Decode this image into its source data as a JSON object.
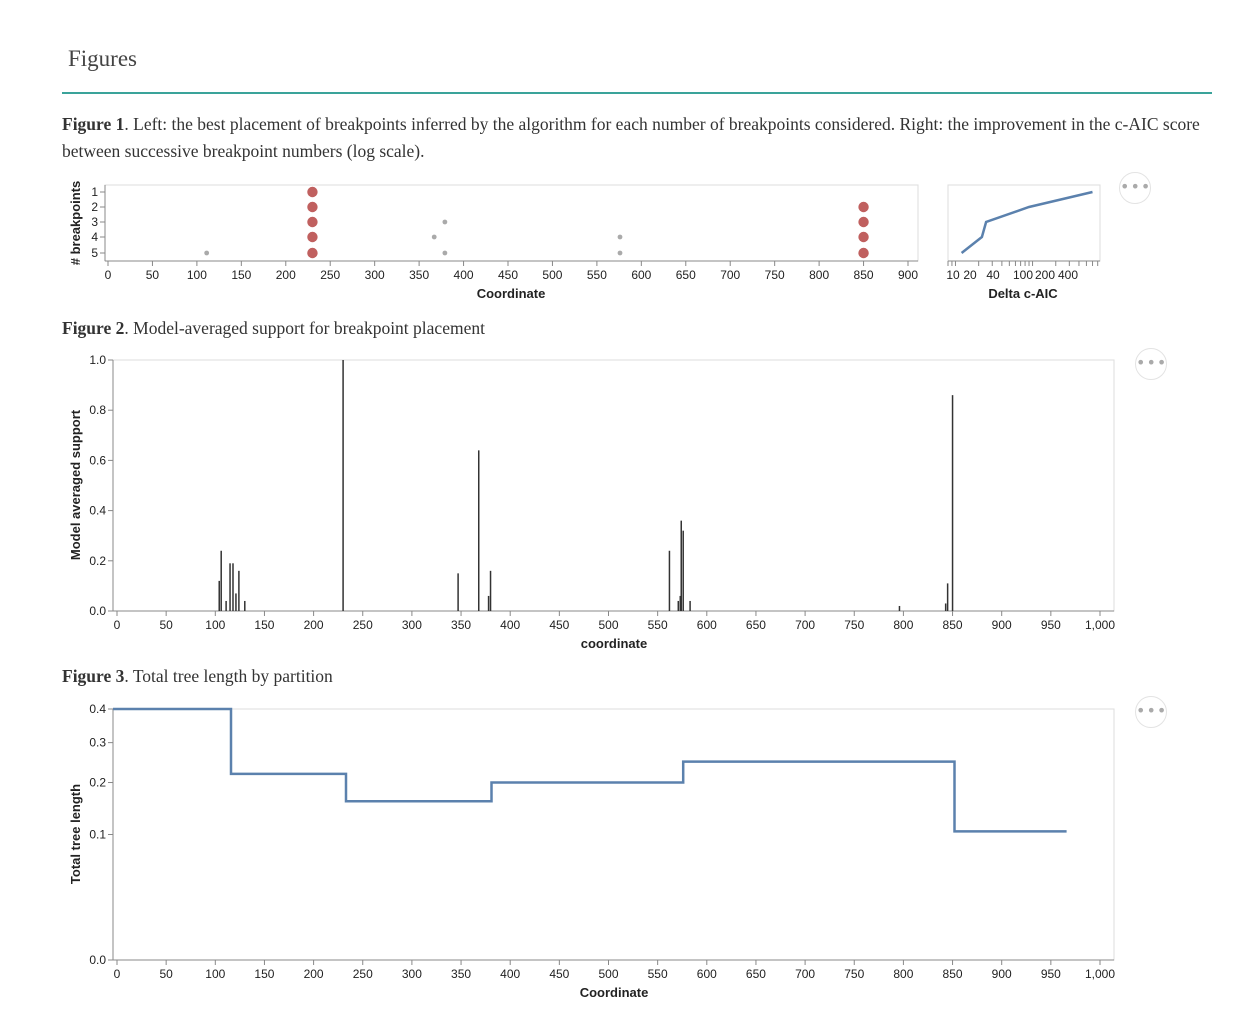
{
  "page": {
    "title": "Figures",
    "menu_glyph": "•••"
  },
  "captions": [
    {
      "label": "Figure 1",
      "text": ". Left: the best placement of breakpoints inferred by the algorithm for each number of breakpoints considered. Right: the improvement in the c-AIC score between successive breakpoint numbers (log scale)."
    },
    {
      "label": "Figure 2",
      "text": ". Model-averaged support for breakpoint placement"
    },
    {
      "label": "Figure 3",
      "text": ". Total tree length by partition"
    }
  ],
  "colors": {
    "accent_rule": "#3aa39a",
    "point_large": "#c0605f",
    "point_small": "#aaaaaa",
    "line": "#5b81ad",
    "bar": "#333333"
  },
  "chart_data": [
    {
      "id": "breakpoints",
      "type": "scatter",
      "xlabel": "Coordinate",
      "ylabel": "# breakpoints",
      "xlim": [
        0,
        900
      ],
      "xticks": [
        0,
        50,
        100,
        150,
        200,
        250,
        300,
        350,
        400,
        450,
        500,
        550,
        600,
        650,
        700,
        750,
        800,
        850,
        900
      ],
      "ycategories": [
        "1",
        "2",
        "3",
        "4",
        "5"
      ],
      "points": [
        {
          "x": 230,
          "y": "1",
          "size": "large"
        },
        {
          "x": 230,
          "y": "2",
          "size": "large"
        },
        {
          "x": 230,
          "y": "3",
          "size": "large"
        },
        {
          "x": 230,
          "y": "4",
          "size": "large"
        },
        {
          "x": 230,
          "y": "5",
          "size": "large"
        },
        {
          "x": 850,
          "y": "2",
          "size": "large"
        },
        {
          "x": 850,
          "y": "3",
          "size": "large"
        },
        {
          "x": 850,
          "y": "4",
          "size": "large"
        },
        {
          "x": 850,
          "y": "5",
          "size": "large"
        },
        {
          "x": 111,
          "y": "5",
          "size": "small"
        },
        {
          "x": 379,
          "y": "3",
          "size": "small"
        },
        {
          "x": 367,
          "y": "4",
          "size": "small"
        },
        {
          "x": 379,
          "y": "5",
          "size": "small"
        },
        {
          "x": 576,
          "y": "4",
          "size": "small"
        },
        {
          "x": 576,
          "y": "5",
          "size": "small"
        }
      ]
    },
    {
      "id": "delta-caic",
      "type": "line",
      "xlabel": "Delta c-AIC",
      "scale": "log",
      "xlim": [
        8,
        750
      ],
      "xticks": [
        10,
        20,
        40,
        100,
        200,
        400
      ],
      "ycategories": [
        "1",
        "2",
        "3",
        "4",
        "5"
      ],
      "points": [
        {
          "x": 600,
          "y": "1"
        },
        {
          "x": 90,
          "y": "2"
        },
        {
          "x": 25,
          "y": "3"
        },
        {
          "x": 22,
          "y": "4"
        },
        {
          "x": 12,
          "y": "5"
        }
      ]
    },
    {
      "id": "support",
      "type": "bar",
      "xlabel": "coordinate",
      "ylabel": "Model averaged support",
      "xlim": [
        0,
        1000
      ],
      "ylim": [
        0,
        1
      ],
      "xticks": [
        0,
        50,
        100,
        150,
        200,
        250,
        300,
        350,
        400,
        450,
        500,
        550,
        600,
        650,
        700,
        750,
        800,
        850,
        900,
        950,
        1000
      ],
      "xtick_labels": [
        "0",
        "50",
        "100",
        "150",
        "200",
        "250",
        "300",
        "350",
        "400",
        "450",
        "500",
        "550",
        "600",
        "650",
        "700",
        "750",
        "800",
        "850",
        "900",
        "950",
        "1,000"
      ],
      "yticks": [
        0,
        0.2,
        0.4,
        0.6,
        0.8,
        1.0
      ],
      "ytick_labels": [
        "0.0",
        "0.2",
        "0.4",
        "0.6",
        "0.8",
        "1.0"
      ],
      "bars": [
        {
          "x": 104,
          "y": 0.12
        },
        {
          "x": 106,
          "y": 0.24
        },
        {
          "x": 111,
          "y": 0.04
        },
        {
          "x": 115,
          "y": 0.19
        },
        {
          "x": 118,
          "y": 0.19
        },
        {
          "x": 121,
          "y": 0.07
        },
        {
          "x": 124,
          "y": 0.16
        },
        {
          "x": 130,
          "y": 0.04
        },
        {
          "x": 230,
          "y": 1.0
        },
        {
          "x": 347,
          "y": 0.15
        },
        {
          "x": 368,
          "y": 0.64
        },
        {
          "x": 378,
          "y": 0.06
        },
        {
          "x": 380,
          "y": 0.16
        },
        {
          "x": 562,
          "y": 0.24
        },
        {
          "x": 571,
          "y": 0.04
        },
        {
          "x": 573,
          "y": 0.06
        },
        {
          "x": 574,
          "y": 0.36
        },
        {
          "x": 576,
          "y": 0.32
        },
        {
          "x": 583,
          "y": 0.04
        },
        {
          "x": 796,
          "y": 0.02
        },
        {
          "x": 843,
          "y": 0.03
        },
        {
          "x": 845,
          "y": 0.11
        },
        {
          "x": 850,
          "y": 0.86
        }
      ]
    },
    {
      "id": "tree-length",
      "type": "line",
      "xlabel": "Coordinate",
      "ylabel": "Total tree length",
      "scale": "sqrt",
      "xlim": [
        0,
        1000
      ],
      "ylim": [
        0,
        0.4
      ],
      "xticks": [
        0,
        50,
        100,
        150,
        200,
        250,
        300,
        350,
        400,
        450,
        500,
        550,
        600,
        650,
        700,
        750,
        800,
        850,
        900,
        950,
        1000
      ],
      "xtick_labels": [
        "0",
        "50",
        "100",
        "150",
        "200",
        "250",
        "300",
        "350",
        "400",
        "450",
        "500",
        "550",
        "600",
        "650",
        "700",
        "750",
        "800",
        "850",
        "900",
        "950",
        "1,000"
      ],
      "yticks": [
        0,
        0.1,
        0.2,
        0.3,
        0.4
      ],
      "ytick_labels": [
        "0.0",
        "0.1",
        "0.2",
        "0.3",
        "0.4"
      ],
      "steps": [
        {
          "x0": 0,
          "x1": 116,
          "y": 0.4
        },
        {
          "x0": 116,
          "x1": 233,
          "y": 0.22
        },
        {
          "x0": 233,
          "x1": 381,
          "y": 0.16
        },
        {
          "x0": 381,
          "x1": 576,
          "y": 0.2
        },
        {
          "x0": 576,
          "x1": 852,
          "y": 0.25
        },
        {
          "x0": 852,
          "x1": 966,
          "y": 0.105
        }
      ]
    }
  ]
}
